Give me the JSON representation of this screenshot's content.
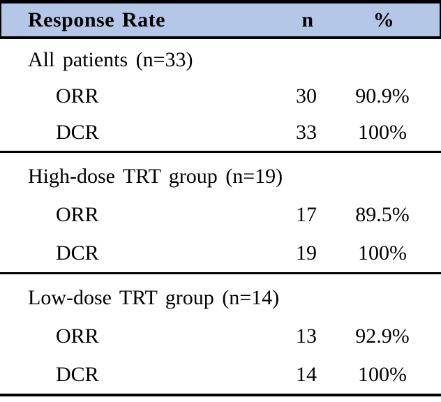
{
  "table": {
    "header": {
      "col1": "Response Rate",
      "col2": "n",
      "col3": "%"
    },
    "header_bg_color": "#B4C7E7",
    "border_color": "#000000",
    "sections": [
      {
        "group_label": "All patients (n=33)",
        "rows": [
          {
            "label": "ORR",
            "n": "30",
            "pct": "90.9%"
          },
          {
            "label": "DCR",
            "n": "33",
            "pct": "100%"
          }
        ]
      },
      {
        "group_label": "High-dose TRT group (n=19)",
        "rows": [
          {
            "label": "ORR",
            "n": "17",
            "pct": "89.5%"
          },
          {
            "label": "DCR",
            "n": "19",
            "pct": "100%"
          }
        ]
      },
      {
        "group_label": "Low-dose TRT group (n=14)",
        "rows": [
          {
            "label": "ORR",
            "n": "13",
            "pct": "92.9%"
          },
          {
            "label": "DCR",
            "n": "14",
            "pct": "100%"
          }
        ]
      }
    ]
  },
  "chart_data": {
    "type": "table",
    "title": "Response Rate",
    "columns": [
      "Response Rate",
      "n",
      "%"
    ],
    "sections": [
      {
        "group": "All patients (n=33)",
        "rows": [
          {
            "measure": "ORR",
            "n": 30,
            "percent": "90.9%"
          },
          {
            "measure": "DCR",
            "n": 33,
            "percent": "100%"
          }
        ]
      },
      {
        "group": "High-dose TRT group (n=19)",
        "rows": [
          {
            "measure": "ORR",
            "n": 17,
            "percent": "89.5%"
          },
          {
            "measure": "DCR",
            "n": 19,
            "percent": "100%"
          }
        ]
      },
      {
        "group": "Low-dose TRT group (n=14)",
        "rows": [
          {
            "measure": "ORR",
            "n": 13,
            "percent": "92.9%"
          },
          {
            "measure": "DCR",
            "n": 14,
            "percent": "100%"
          }
        ]
      }
    ]
  }
}
